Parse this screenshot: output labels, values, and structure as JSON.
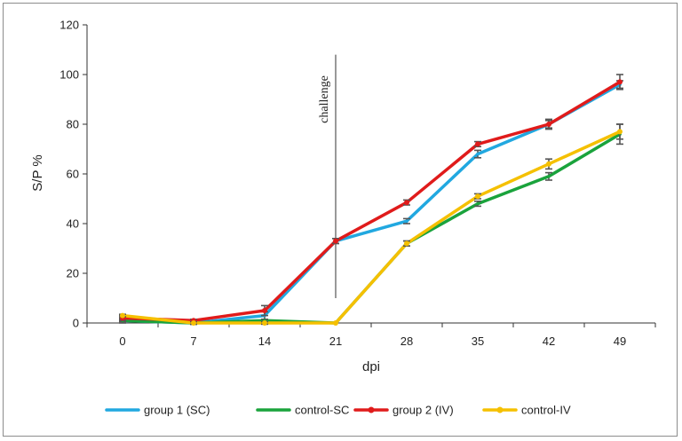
{
  "chart_data": {
    "type": "line",
    "title": "",
    "xlabel": "dpi",
    "ylabel": "S/P %",
    "ylim": [
      0,
      120
    ],
    "yticks": [
      0,
      20,
      40,
      60,
      80,
      100,
      120
    ],
    "x": [
      0,
      7,
      14,
      21,
      28,
      35,
      42,
      49
    ],
    "x_tick_labels": [
      "0",
      "7",
      "14",
      "21",
      "28",
      "35",
      "42",
      "49"
    ],
    "grid": false,
    "legend_position": "bottom",
    "annotation": {
      "text": "challenge",
      "x": 21,
      "y_from": 10,
      "y_to": 108
    },
    "series": [
      {
        "name": "group 1 (SC)",
        "color": "#21a8e0",
        "marker": "none",
        "values": [
          1,
          0,
          3,
          33,
          41,
          68,
          80,
          96
        ],
        "errors": [
          1,
          0.5,
          1.5,
          1,
          1,
          1.5,
          1.5,
          1.5
        ]
      },
      {
        "name": "control-SC",
        "color": "#1aa33c",
        "marker": "none",
        "values": [
          1,
          0,
          1,
          0,
          32,
          48,
          59,
          76
        ],
        "errors": [
          0.5,
          0.5,
          0.5,
          0,
          1,
          1,
          1.5,
          4
        ]
      },
      {
        "name": "group 2 (IV)",
        "color": "#e01b1b",
        "marker": "circle",
        "values": [
          2,
          1,
          5,
          33,
          48.5,
          72,
          80,
          97
        ],
        "errors": [
          1,
          0.5,
          2,
          1,
          1,
          1,
          2,
          3
        ]
      },
      {
        "name": "control-IV",
        "color": "#f5c000",
        "marker": "circle",
        "values": [
          3,
          0,
          0,
          0,
          32,
          51,
          64,
          77
        ],
        "errors": [
          0.5,
          0.5,
          0.5,
          0,
          1,
          1,
          2,
          3
        ]
      }
    ]
  }
}
